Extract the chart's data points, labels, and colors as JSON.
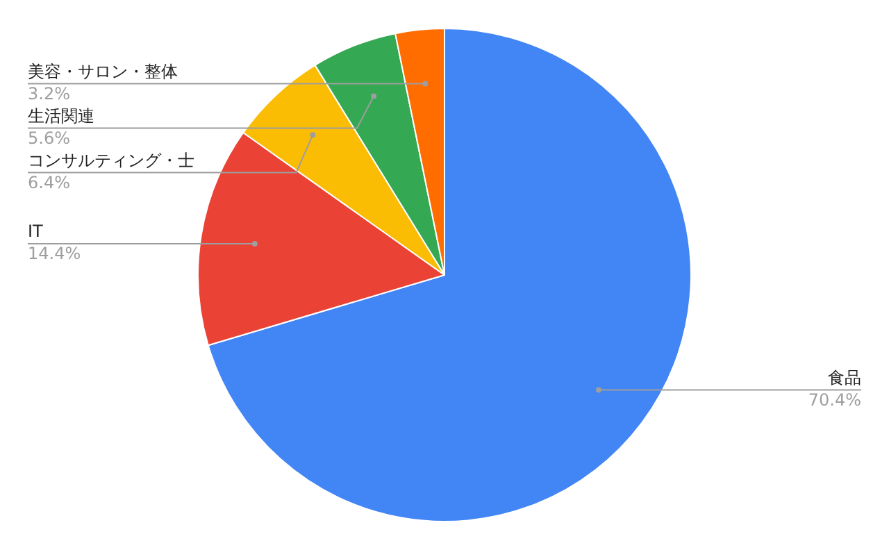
{
  "chart_data": {
    "type": "pie",
    "categories": [
      "食品",
      "IT",
      "コンサルティング・士",
      "生活関連",
      "美容・サロン・整体"
    ],
    "values": [
      70.4,
      14.4,
      6.4,
      5.6,
      3.2
    ],
    "colors": [
      "#4285f4",
      "#ea4335",
      "#fbbc04",
      "#34a853",
      "#ff6d01"
    ],
    "value_labels": [
      "70.4%",
      "14.4%",
      "6.4%",
      "5.6%",
      "3.2%"
    ]
  }
}
